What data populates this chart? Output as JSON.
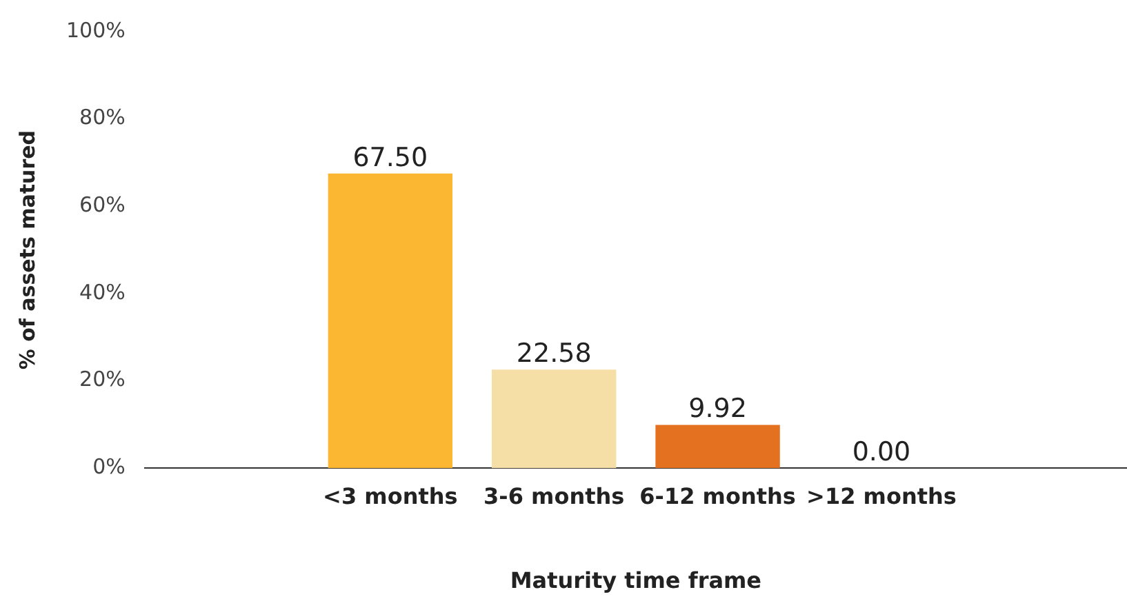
{
  "chart_data": {
    "type": "bar",
    "xlabel": "Maturity time frame",
    "ylabel": "% of assets matured",
    "categories": [
      null,
      "<3 months",
      "3-6 months",
      "6-12 months",
      ">12 months",
      null
    ],
    "values": [
      null,
      67.5,
      22.58,
      9.92,
      0,
      null
    ],
    "value_labels": [
      null,
      "67.50",
      "22.58",
      "9.92",
      "0.00",
      null
    ],
    "colors": [
      "#fbb731",
      "#fbb731",
      "#f5dfa6",
      "#e3711f",
      "#e3711f",
      "#fbb731"
    ],
    "ylim": [
      0,
      100
    ],
    "yticks": [
      {
        "value": 0,
        "label": "0%"
      },
      {
        "value": 20,
        "label": "20%"
      },
      {
        "value": 40,
        "label": "40%"
      },
      {
        "value": 60,
        "label": "60%"
      },
      {
        "value": 80,
        "label": "80%"
      },
      {
        "value": 100,
        "label": "100%"
      }
    ],
    "grid": false,
    "legend": false
  }
}
